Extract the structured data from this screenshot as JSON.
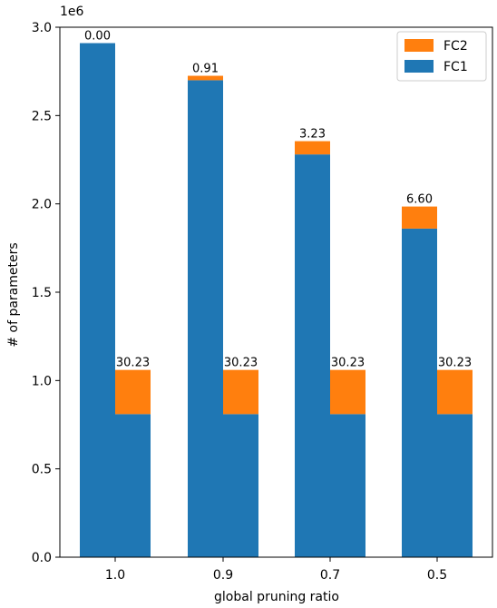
{
  "chart_data": {
    "type": "bar",
    "stacked": true,
    "grouped": true,
    "xlabel": "global pruning ratio",
    "ylabel": "# of parameters",
    "y_offset_label": "1e6",
    "ylim": [
      0,
      3.0
    ],
    "yticks": [
      "0.0",
      "0.5",
      "1.0",
      "1.5",
      "2.0",
      "2.5",
      "3.0"
    ],
    "categories": [
      "1.0",
      "0.9",
      "0.7",
      "0.5"
    ],
    "groups": [
      {
        "series": [
          {
            "name": "FC1",
            "color": "#1f77b4",
            "values": [
              2.91,
              2.7,
              2.28,
              1.86
            ]
          },
          {
            "name": "FC2",
            "color": "#ff7f0e",
            "values": [
              0.0,
              0.025,
              0.075,
              0.125
            ]
          }
        ],
        "labels": [
          "0.00",
          "0.91",
          "3.23",
          "6.60"
        ]
      },
      {
        "series": [
          {
            "name": "FC1",
            "color": "#1f77b4",
            "values": [
              0.81,
              0.81,
              0.81,
              0.81
            ]
          },
          {
            "name": "FC2",
            "color": "#ff7f0e",
            "values": [
              0.25,
              0.25,
              0.25,
              0.25
            ]
          }
        ],
        "labels": [
          "30.23",
          "30.23",
          "30.23",
          "30.23"
        ]
      }
    ],
    "legend": {
      "position": "top-right",
      "entries": [
        {
          "name": "FC2",
          "color": "#ff7f0e"
        },
        {
          "name": "FC1",
          "color": "#1f77b4"
        }
      ]
    }
  }
}
